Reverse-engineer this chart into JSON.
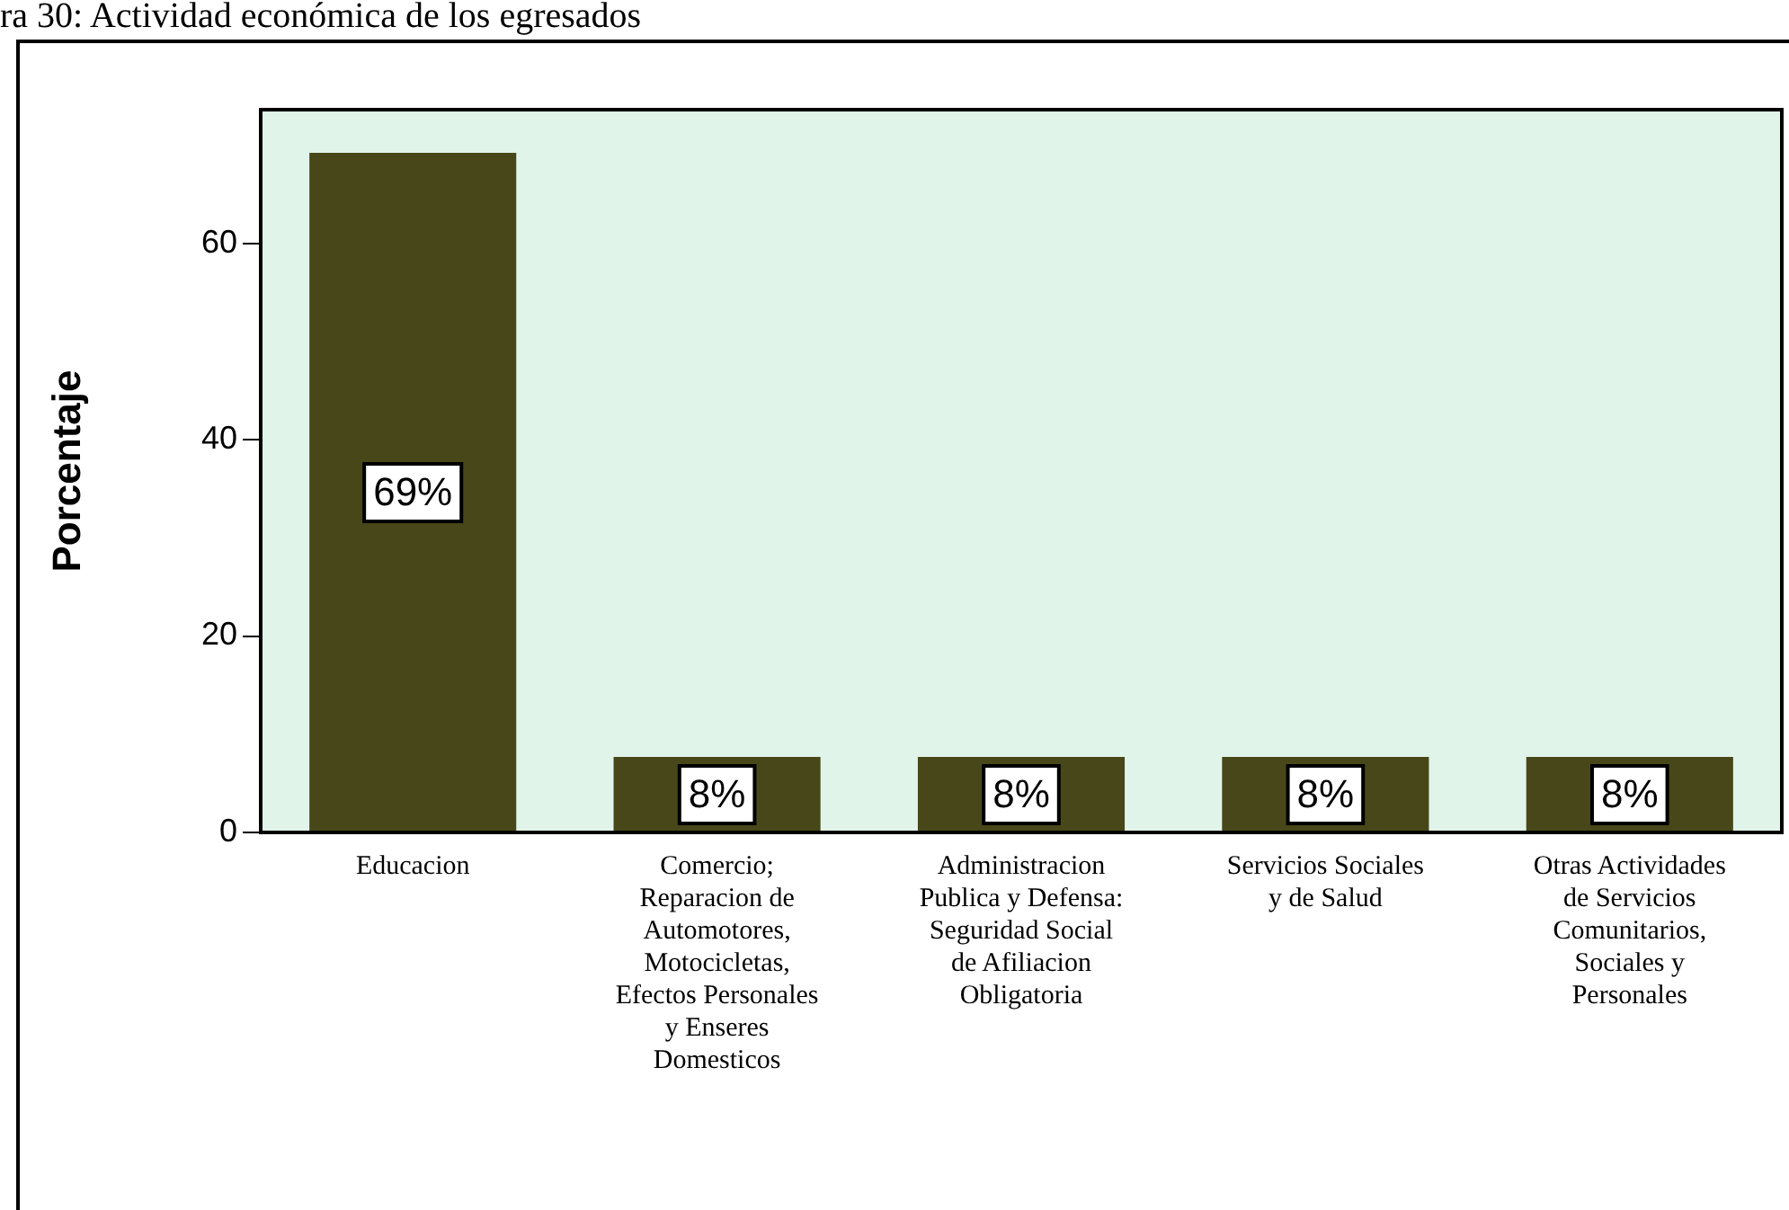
{
  "chart_data": {
    "type": "bar",
    "title": "ra 30: Actividad económica de los egresados",
    "ylabel": "Porcentaje",
    "categories": [
      "Educacion",
      "Comercio; Reparacion de Automotores, Motocicletas, Efectos Personales y Enseres Domesticos",
      "Administracion Publica y Defensa: Seguridad Social de Afiliacion Obligatoria",
      "Servicios Sociales y de Salud",
      "Otras Actividades de Servicios Comunitarios, Sociales y Personales"
    ],
    "values": [
      69.2,
      7.7,
      7.7,
      7.7,
      7.7
    ],
    "value_labels": [
      "69%",
      "8%",
      "8%",
      "8%",
      "8%"
    ],
    "color": "#474719",
    "ylim": [
      0,
      73.6
    ],
    "yticks": [
      0,
      20,
      40,
      60
    ],
    "grid": false,
    "legend": false
  }
}
